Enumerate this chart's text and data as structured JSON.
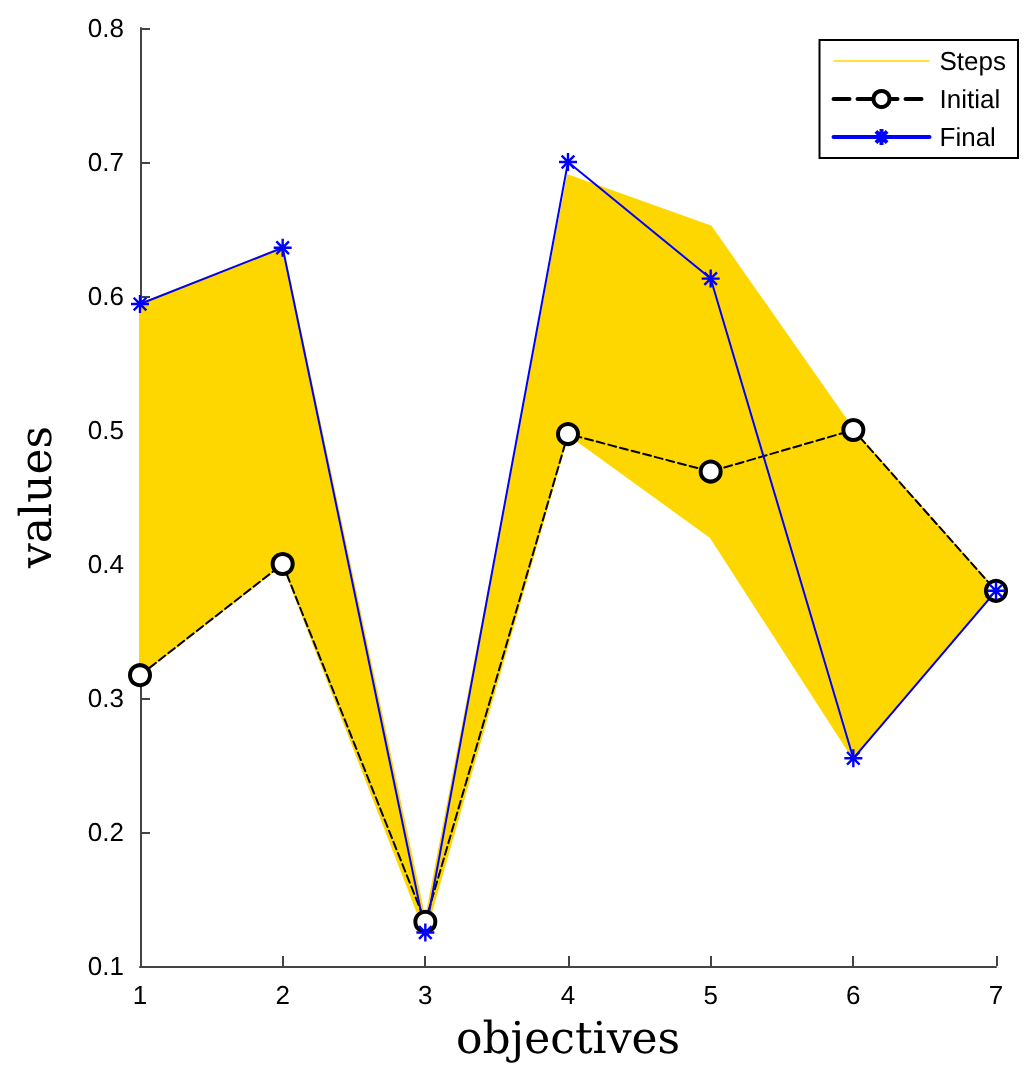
{
  "chart_data": {
    "type": "line",
    "xlabel": "objectives",
    "ylabel": "values",
    "x": [
      1,
      2,
      3,
      4,
      5,
      6,
      7
    ],
    "xlim": [
      1,
      7
    ],
    "xticks": [
      1,
      2,
      3,
      4,
      5,
      6,
      7
    ],
    "ylim": [
      0.1,
      0.8
    ],
    "yticks": [
      0.1,
      0.2,
      0.3,
      0.4,
      0.5,
      0.6,
      0.7,
      0.8
    ],
    "grid": false,
    "legend": "top right",
    "series": [
      {
        "name": "Steps",
        "type": "area",
        "color": "#ffd700",
        "values": [
          null,
          null,
          null,
          null,
          null,
          null,
          null
        ],
        "lower": [
          0.317,
          0.4,
          0.125,
          0.497,
          0.42,
          0.255,
          0.38
        ],
        "upper": [
          0.594,
          0.636,
          0.133,
          0.69,
          0.652,
          0.5,
          0.38
        ]
      },
      {
        "name": "Initial",
        "color": "#000000",
        "marker": "circle",
        "line_style": "dashed",
        "values": [
          0.317,
          0.4,
          0.133,
          0.497,
          0.469,
          0.5,
          0.38
        ]
      },
      {
        "name": "Final",
        "color": "#0000ff",
        "marker": "cross",
        "line_style": "solid",
        "values": [
          0.594,
          0.636,
          0.125,
          0.7,
          0.613,
          0.255,
          0.38
        ]
      }
    ]
  }
}
